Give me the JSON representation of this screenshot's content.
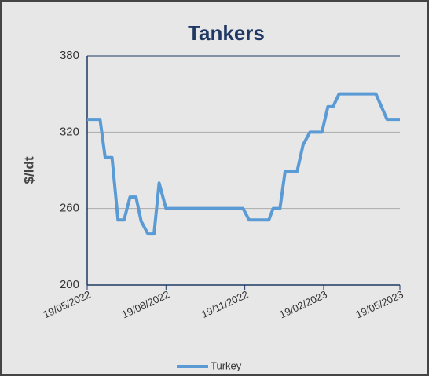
{
  "chart_data": {
    "type": "line",
    "title": "Tankers",
    "y_label": "$/ldt",
    "x": [
      "19/05/2022",
      "03/06/2022",
      "09/06/2022",
      "17/06/2022",
      "24/06/2022",
      "01/07/2022",
      "08/07/2022",
      "15/07/2022",
      "21/07/2022",
      "29/07/2022",
      "05/08/2022",
      "11/08/2022",
      "19/08/2022",
      "17/11/2022",
      "24/11/2022",
      "17/12/2022",
      "22/12/2022",
      "30/12/2022",
      "05/01/2023",
      "19/01/2023",
      "26/01/2023",
      "03/02/2023",
      "17/02/2023",
      "24/02/2023",
      "02/03/2023",
      "09/03/2023",
      "21/04/2023",
      "04/05/2023",
      "19/05/2023"
    ],
    "series": [
      {
        "name": "Turkey",
        "color": "#5b9bd5",
        "values": [
          330,
          330,
          300,
          300,
          251,
          251,
          269,
          269,
          250,
          240,
          240,
          280,
          260,
          260,
          251,
          251,
          260,
          260,
          289,
          289,
          310,
          320,
          320,
          340,
          340,
          350,
          350,
          330,
          330
        ]
      }
    ],
    "xlim": [
      "19/05/2022",
      "19/05/2023"
    ],
    "xticks": [
      "19/05/2022",
      "19/08/2022",
      "19/11/2022",
      "19/02/2023",
      "19/05/2023"
    ],
    "ylim": [
      200,
      380
    ],
    "yticks": [
      200,
      260,
      320,
      380
    ],
    "grid": true,
    "legend": "bottom"
  }
}
